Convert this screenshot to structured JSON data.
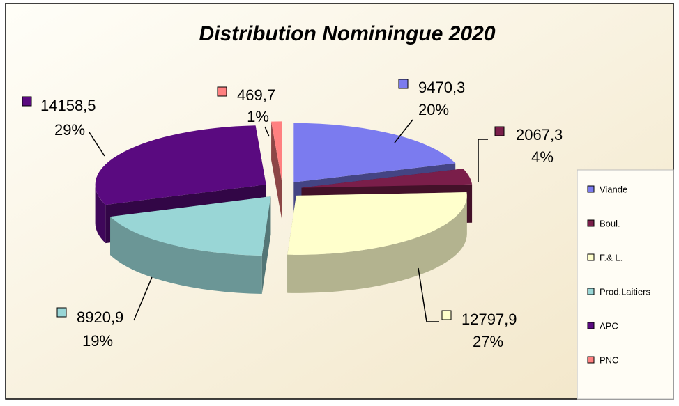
{
  "chart_data": {
    "type": "pie3d",
    "title": "Distribution Nominingue 2020",
    "categories": [
      "Viande",
      "Boul.",
      "F.& L.",
      "Prod.Laitiers",
      "APC",
      "PNC"
    ],
    "values": [
      9470.3,
      2067.3,
      12797.9,
      8920.9,
      14158.5,
      469.7
    ],
    "value_labels": [
      "9470,3",
      "2067,3",
      "12797,9",
      "8920,9",
      "14158,5",
      "469,7"
    ],
    "percents": [
      20,
      4,
      27,
      19,
      29,
      1
    ],
    "percent_labels": [
      "20%",
      "4%",
      "27%",
      "19%",
      "29%",
      "1%"
    ],
    "colors": [
      "#7b7bef",
      "#7a1e4a",
      "#ffffcc",
      "#99d6d6",
      "#5a0a80",
      "#ff8080"
    ],
    "legend": "right"
  }
}
